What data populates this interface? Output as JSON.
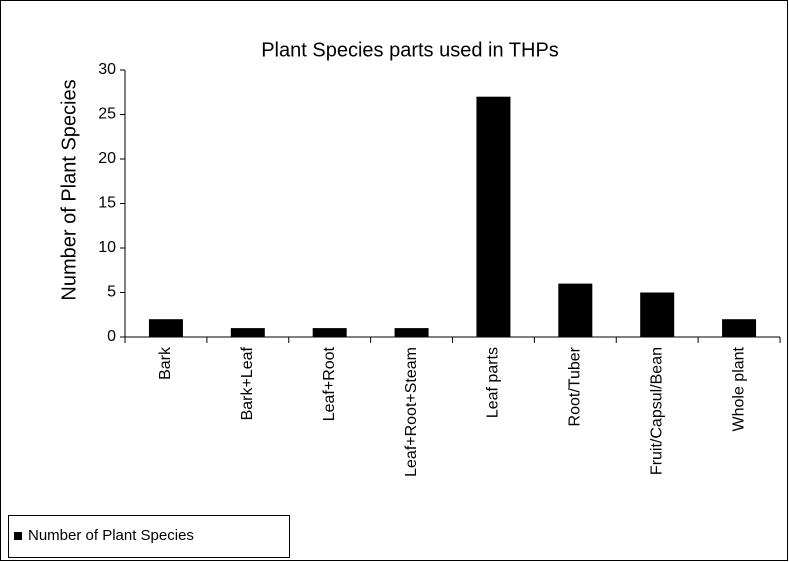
{
  "chart_data": {
    "type": "bar",
    "title": "Plant Species parts used in THPs",
    "y_label": "Number of Plant Species",
    "categories": [
      "Bark",
      "Bark+Leaf",
      "Leaf+Root",
      "Leaf+Root+Steam",
      "Leaf parts",
      "Root/Tuber",
      "Fruit/Capsul/Bean",
      "Whole plant"
    ],
    "series": [
      {
        "name": "Number of Plant Species",
        "color": "#000000",
        "values": [
          2,
          1,
          1,
          1,
          27,
          6,
          5,
          2
        ]
      }
    ],
    "ylim": [
      0,
      30
    ],
    "yticks": [
      0,
      5,
      10,
      15,
      20,
      25,
      30
    ],
    "grid": false,
    "legend": "bottom-left"
  }
}
